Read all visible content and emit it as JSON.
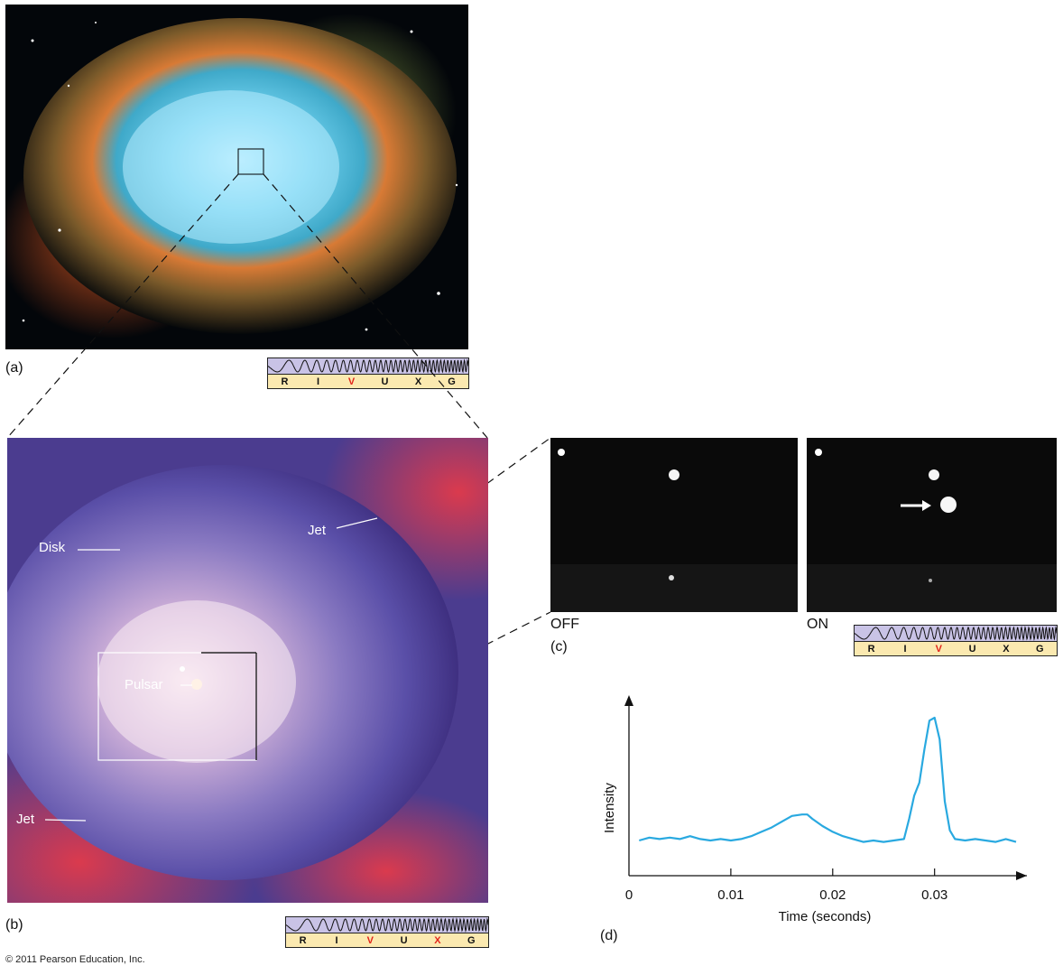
{
  "panels": {
    "a": {
      "label": "(a)"
    },
    "b": {
      "label": "(b)",
      "disk": "Disk",
      "jet_upper": "Jet",
      "jet_lower": "Jet",
      "pulsar": "Pulsar"
    },
    "c": {
      "label": "(c)",
      "off": "OFF",
      "on": "ON"
    },
    "d": {
      "label": "(d)"
    }
  },
  "spectrum": {
    "letters": [
      "R",
      "I",
      "V",
      "U",
      "X",
      "G"
    ],
    "highlight_a": [
      "V"
    ],
    "highlight_b": [
      "V",
      "X"
    ],
    "highlight_c": [
      "V"
    ],
    "highlight_color": "#e2231a"
  },
  "copyright": "© 2011 Pearson Education, Inc.",
  "chart_data": {
    "type": "line",
    "xlabel": "Time (seconds)",
    "ylabel": "Intensity",
    "xlim": [
      0,
      0.038
    ],
    "ylim": [
      0,
      1
    ],
    "x_ticks": [
      0,
      0.01,
      0.02,
      0.03
    ],
    "x_tick_labels": [
      "0",
      "0.01",
      "0.02",
      "0.03"
    ],
    "grid": false,
    "series": [
      {
        "color": "#29a9e0",
        "points": [
          [
            0.001,
            0.15
          ],
          [
            0.002,
            0.17
          ],
          [
            0.003,
            0.16
          ],
          [
            0.004,
            0.17
          ],
          [
            0.005,
            0.16
          ],
          [
            0.006,
            0.18
          ],
          [
            0.007,
            0.16
          ],
          [
            0.008,
            0.15
          ],
          [
            0.009,
            0.16
          ],
          [
            0.01,
            0.15
          ],
          [
            0.011,
            0.16
          ],
          [
            0.012,
            0.18
          ],
          [
            0.013,
            0.21
          ],
          [
            0.014,
            0.24
          ],
          [
            0.015,
            0.28
          ],
          [
            0.016,
            0.32
          ],
          [
            0.017,
            0.33
          ],
          [
            0.0175,
            0.33
          ],
          [
            0.018,
            0.3
          ],
          [
            0.019,
            0.25
          ],
          [
            0.02,
            0.21
          ],
          [
            0.021,
            0.18
          ],
          [
            0.022,
            0.16
          ],
          [
            0.023,
            0.14
          ],
          [
            0.024,
            0.15
          ],
          [
            0.025,
            0.14
          ],
          [
            0.026,
            0.15
          ],
          [
            0.027,
            0.16
          ],
          [
            0.0275,
            0.3
          ],
          [
            0.028,
            0.46
          ],
          [
            0.0285,
            0.55
          ],
          [
            0.029,
            0.78
          ],
          [
            0.0295,
            0.98
          ],
          [
            0.03,
            1.0
          ],
          [
            0.0305,
            0.85
          ],
          [
            0.031,
            0.42
          ],
          [
            0.0315,
            0.22
          ],
          [
            0.032,
            0.16
          ],
          [
            0.033,
            0.15
          ],
          [
            0.034,
            0.16
          ],
          [
            0.035,
            0.15
          ],
          [
            0.036,
            0.14
          ],
          [
            0.037,
            0.16
          ],
          [
            0.038,
            0.14
          ]
        ]
      }
    ]
  }
}
